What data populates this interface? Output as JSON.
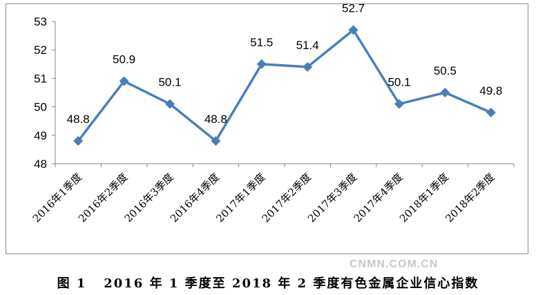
{
  "chart_data": {
    "type": "line",
    "categories": [
      "2016年1季度",
      "2016年2季度",
      "2016年3季度",
      "2016年4季度",
      "2017年1季度",
      "2017年2季度",
      "2017年3季度",
      "2017年4季度",
      "2018年1季度",
      "2018年2季度"
    ],
    "series": [
      {
        "values": [
          48.8,
          50.9,
          50.1,
          48.8,
          51.5,
          51.4,
          52.7,
          50.1,
          50.5,
          49.8
        ]
      }
    ],
    "ylim": [
      48,
      53
    ],
    "yticks": [
      48,
      49,
      50,
      51,
      52,
      53
    ],
    "grid": false,
    "legend": "none",
    "line_color": "#4a7ebb",
    "marker": "diamond"
  },
  "caption": "图 1   2016 年 1 季度至 2018 年 2 季度有色金属企业信心指数",
  "watermark": "CNMN.COM.CN"
}
